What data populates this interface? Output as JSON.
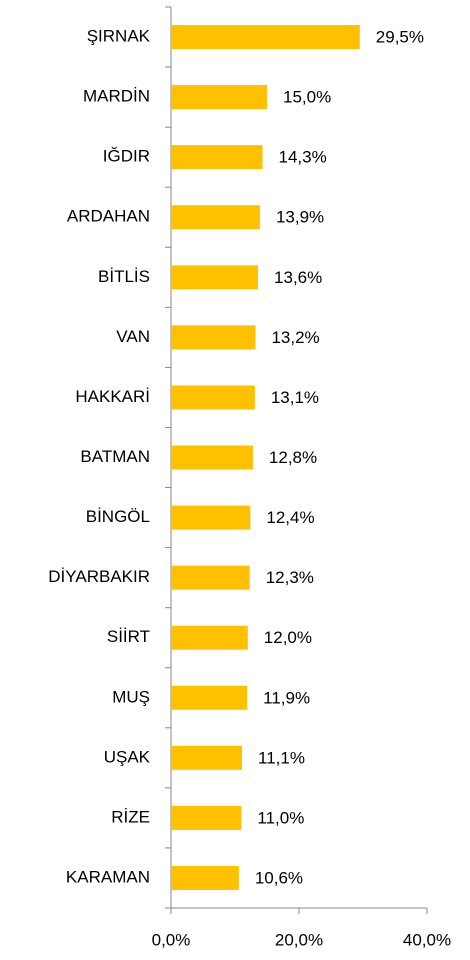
{
  "chart_data": {
    "type": "bar",
    "orientation": "horizontal",
    "categories": [
      "ŞIRNAK",
      "MARDİN",
      "IĞDIR",
      "ARDAHAN",
      "BİTLİS",
      "VAN",
      "HAKKARİ",
      "BATMAN",
      "BİNGÖL",
      "DİYARBAKIR",
      "SİİRT",
      "MUŞ",
      "UŞAK",
      "RİZE",
      "KARAMAN"
    ],
    "values": [
      29.5,
      15.0,
      14.3,
      13.9,
      13.6,
      13.2,
      13.1,
      12.8,
      12.4,
      12.3,
      12.0,
      11.9,
      11.1,
      11.0,
      10.6
    ],
    "value_labels": [
      "29,5%",
      "15,0%",
      "14,3%",
      "13,9%",
      "13,6%",
      "13,2%",
      "13,1%",
      "12,8%",
      "12,4%",
      "12,3%",
      "12,0%",
      "11,9%",
      "11,1%",
      "11,0%",
      "10,6%"
    ],
    "color": "#FFC000",
    "xlim": [
      0,
      40
    ],
    "xticks": [
      {
        "value": 0,
        "label": "0,0%"
      },
      {
        "value": 20,
        "label": "20,0%"
      },
      {
        "value": 40,
        "label": "40,0%"
      }
    ]
  }
}
